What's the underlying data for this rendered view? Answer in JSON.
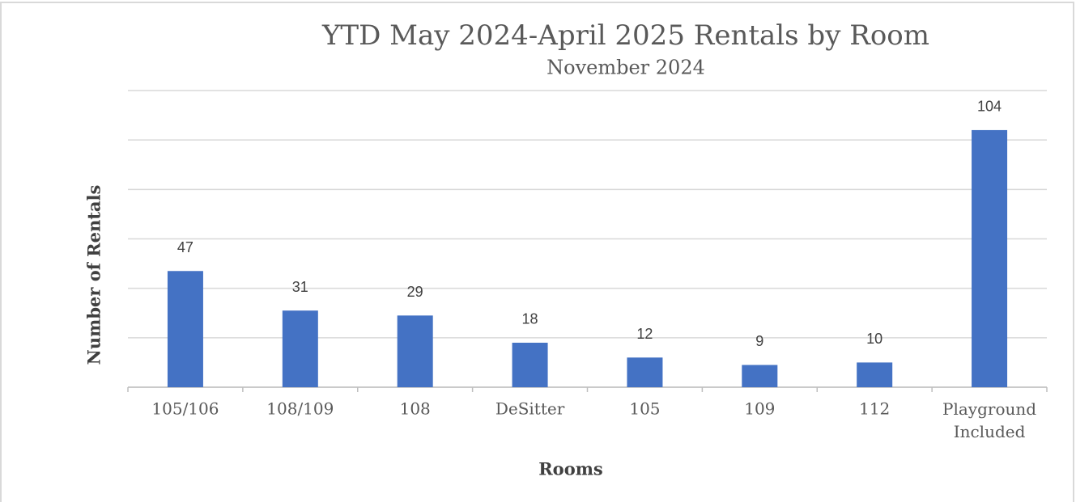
{
  "chart_data": {
    "type": "bar",
    "title": "YTD May 2024-April 2025 Rentals by Room",
    "subtitle": "November 2024",
    "x_label": "Rooms",
    "y_label": "Number of Rentals",
    "categories": [
      "105/106",
      "108/109",
      "108",
      "DeSitter",
      "105",
      "109",
      "112",
      "Playground Included"
    ],
    "values": [
      47,
      31,
      29,
      18,
      12,
      9,
      10,
      104
    ],
    "color": "#4472c4",
    "ylim": [
      0,
      120
    ],
    "yticks": [
      0,
      20,
      40,
      60,
      80,
      100,
      120
    ],
    "grid": true
  }
}
